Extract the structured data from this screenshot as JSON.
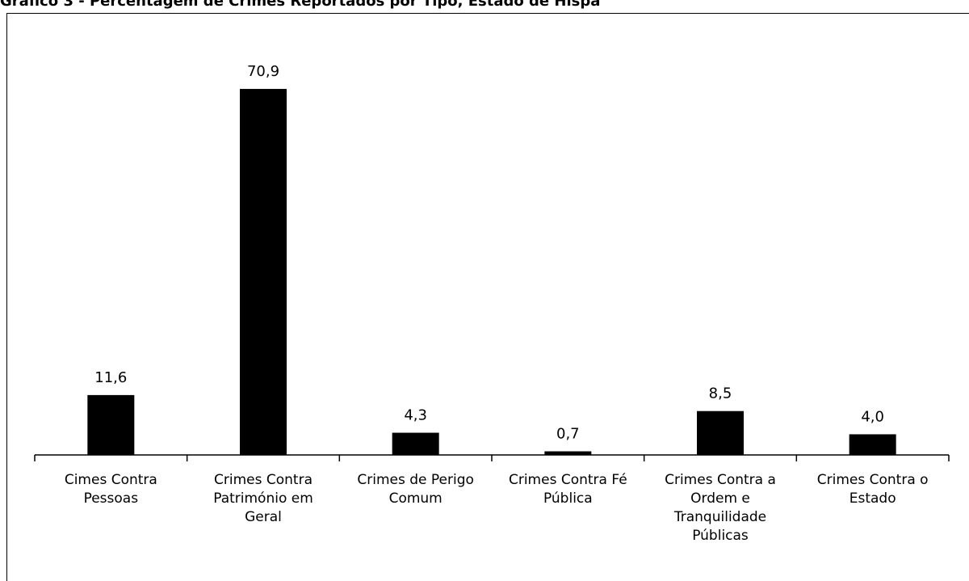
{
  "chart_data": {
    "type": "bar",
    "title": "Gráfico 3 - Percentagem de Crimes Reportados por Tipo, Estado de Hispa",
    "categories": [
      [
        "Cimes Contra",
        "Pessoas"
      ],
      [
        "Crimes Contra",
        "Património em",
        "Geral"
      ],
      [
        "Crimes de Perigo",
        "Comum"
      ],
      [
        "Crimes Contra Fé",
        "Pública"
      ],
      [
        "Crimes Contra a",
        "Ordem e",
        "Tranquilidade",
        "Públicas"
      ],
      [
        "Crimes Contra o",
        "Estado"
      ]
    ],
    "values": [
      11.6,
      70.9,
      4.3,
      0.7,
      8.5,
      4.0
    ],
    "value_labels": [
      "11,6",
      "70,9",
      "4,3",
      "0,7",
      "8,5",
      "4,0"
    ],
    "bar_color": "#000000",
    "xlabel": "",
    "ylabel": "",
    "ylim": [
      0,
      80
    ],
    "grid": false,
    "legend": "none"
  }
}
